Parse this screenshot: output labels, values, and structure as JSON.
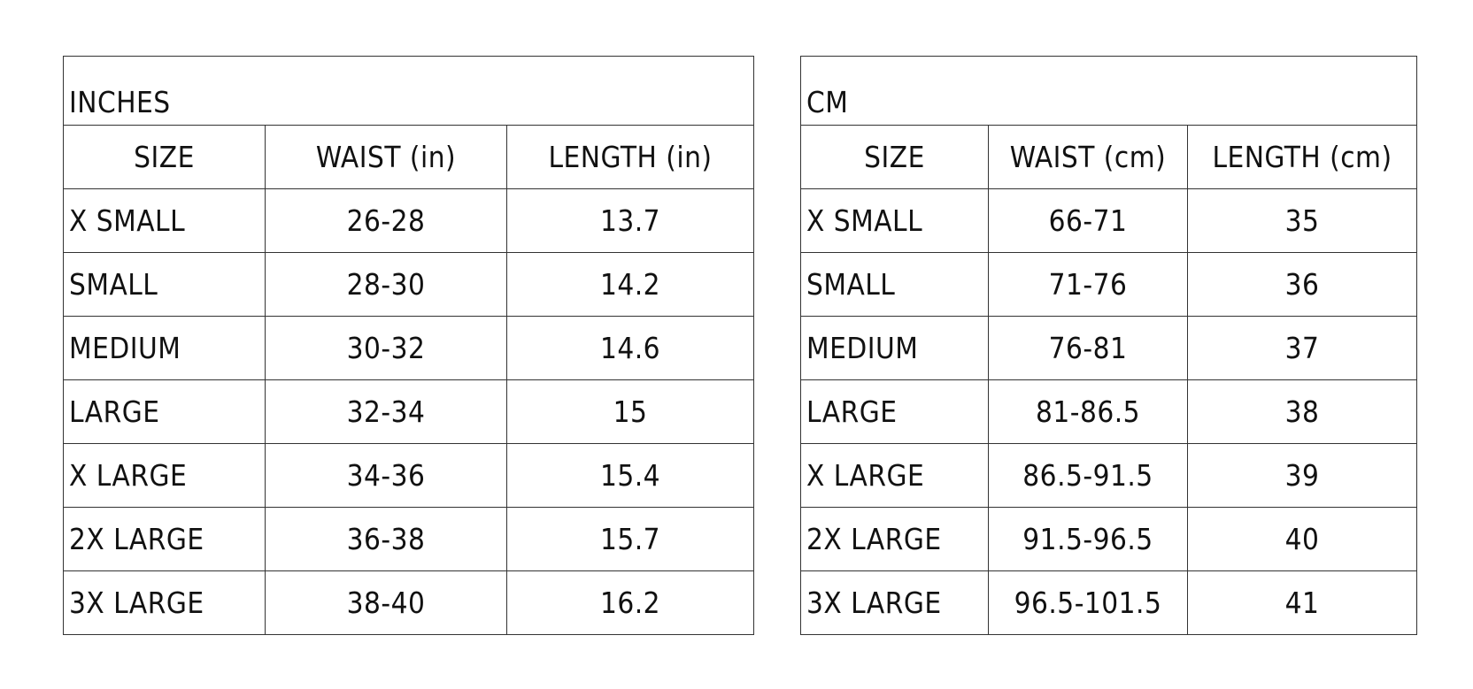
{
  "inches": {
    "title": "INCHES",
    "headers": [
      "SIZE",
      "WAIST (in)",
      "LENGTH (in)"
    ],
    "rows": [
      [
        "X SMALL",
        "26-28",
        "13.7"
      ],
      [
        "SMALL",
        "28-30",
        "14.2"
      ],
      [
        "MEDIUM",
        "30-32",
        "14.6"
      ],
      [
        "LARGE",
        "32-34",
        "15"
      ],
      [
        "X LARGE",
        "34-36",
        "15.4"
      ],
      [
        "2X LARGE",
        "36-38",
        "15.7"
      ],
      [
        "3X LARGE",
        "38-40",
        "16.2"
      ]
    ]
  },
  "cm": {
    "title": "CM",
    "headers": [
      "SIZE",
      "WAIST (cm)",
      "LENGTH (cm)"
    ],
    "rows": [
      [
        "X SMALL",
        "66-71",
        "35"
      ],
      [
        "SMALL",
        "71-76",
        "36"
      ],
      [
        "MEDIUM",
        "76-81",
        "37"
      ],
      [
        "LARGE",
        "81-86.5",
        "38"
      ],
      [
        "X LARGE",
        "86.5-91.5",
        "39"
      ],
      [
        "2X LARGE",
        "91.5-96.5",
        "40"
      ],
      [
        "3X LARGE",
        "96.5-101.5",
        "41"
      ]
    ]
  }
}
